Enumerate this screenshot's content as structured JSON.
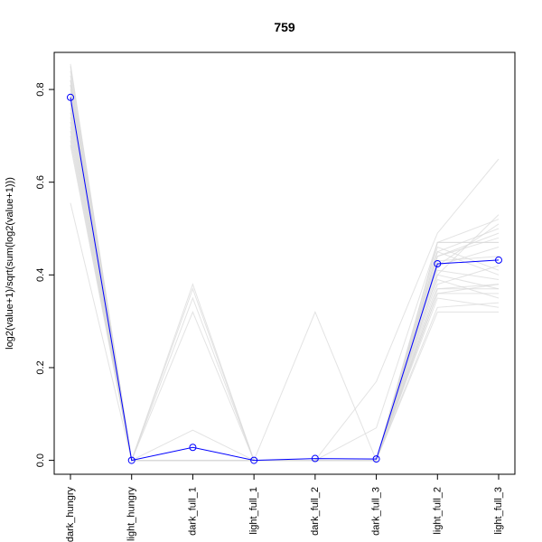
{
  "chart_data": {
    "type": "line",
    "title": "759",
    "xlabel": "",
    "ylabel": "log2(value+1)/sqrt(sum(log2(value+1)))",
    "ylim": [
      -0.03,
      0.88
    ],
    "yticks": [
      0.0,
      0.2,
      0.4,
      0.6,
      0.8
    ],
    "ytick_labels": [
      "0.0",
      "0.2",
      "0.4",
      "0.6",
      "0.8"
    ],
    "categories": [
      "dark_hungry",
      "light_hungry",
      "dark_full_1",
      "light_full_1",
      "dark_full_2",
      "dark_full_3",
      "light_full_2",
      "light_full_3"
    ],
    "grid": false,
    "legend": "none",
    "colors": {
      "highlight": "#0000ff",
      "background": "#d9d9d9"
    },
    "highlight_series": {
      "values": [
        0.783,
        0.0,
        0.028,
        0.0,
        0.004,
        0.003,
        0.424,
        0.432
      ]
    },
    "background_series": [
      {
        "values": [
          0.855,
          0.0,
          0.0,
          0.0,
          0.0,
          0.0,
          0.47,
          0.47
        ]
      },
      {
        "values": [
          0.85,
          0.0,
          0.0,
          0.0,
          0.0,
          0.0,
          0.46,
          0.41
        ]
      },
      {
        "values": [
          0.84,
          0.0,
          0.0,
          0.0,
          0.0,
          0.0,
          0.37,
          0.37
        ]
      },
      {
        "values": [
          0.83,
          0.0,
          0.38,
          0.0,
          0.0,
          0.0,
          0.45,
          0.5
        ]
      },
      {
        "values": [
          0.82,
          0.0,
          0.37,
          0.0,
          0.0,
          0.0,
          0.44,
          0.48
        ]
      },
      {
        "values": [
          0.81,
          0.0,
          0.35,
          0.0,
          0.0,
          0.0,
          0.4,
          0.53
        ]
      },
      {
        "values": [
          0.8,
          0.0,
          0.32,
          0.0,
          0.0,
          0.0,
          0.42,
          0.46
        ]
      },
      {
        "values": [
          0.79,
          0.0,
          0.0,
          0.0,
          0.32,
          0.0,
          0.36,
          0.38
        ]
      },
      {
        "values": [
          0.78,
          0.0,
          0.0,
          0.0,
          0.0,
          0.17,
          0.49,
          0.65
        ]
      },
      {
        "values": [
          0.77,
          0.0,
          0.065,
          0.0,
          0.0,
          0.07,
          0.47,
          0.52
        ]
      },
      {
        "values": [
          0.76,
          0.0,
          0.0,
          0.0,
          0.0,
          0.0,
          0.43,
          0.44
        ]
      },
      {
        "values": [
          0.75,
          0.0,
          0.0,
          0.0,
          0.0,
          0.0,
          0.39,
          0.35
        ]
      },
      {
        "values": [
          0.74,
          0.0,
          0.0,
          0.0,
          0.0,
          0.0,
          0.35,
          0.33
        ]
      },
      {
        "values": [
          0.73,
          0.0,
          0.0,
          0.0,
          0.0,
          0.0,
          0.33,
          0.34
        ]
      },
      {
        "values": [
          0.72,
          0.0,
          0.0,
          0.0,
          0.0,
          0.0,
          0.41,
          0.39
        ]
      },
      {
        "values": [
          0.71,
          0.0,
          0.0,
          0.0,
          0.0,
          0.0,
          0.38,
          0.42
        ]
      },
      {
        "values": [
          0.7,
          0.0,
          0.0,
          0.0,
          0.0,
          0.0,
          0.44,
          0.49
        ]
      },
      {
        "values": [
          0.69,
          0.0,
          0.0,
          0.0,
          0.0,
          0.0,
          0.36,
          0.36
        ]
      },
      {
        "values": [
          0.68,
          0.0,
          0.0,
          0.0,
          0.0,
          0.0,
          0.45,
          0.4
        ]
      },
      {
        "values": [
          0.555,
          0.0,
          0.0,
          0.0,
          0.0,
          0.0,
          0.32,
          0.32
        ]
      },
      {
        "values": [
          0.82,
          0.0,
          0.0,
          0.0,
          0.0,
          0.0,
          0.42,
          0.51
        ]
      },
      {
        "values": [
          0.81,
          0.0,
          0.0,
          0.0,
          0.0,
          0.0,
          0.4,
          0.37
        ]
      },
      {
        "values": [
          0.79,
          0.0,
          0.0,
          0.0,
          0.0,
          0.0,
          0.47,
          0.47
        ]
      },
      {
        "values": [
          0.77,
          0.0,
          0.0,
          0.0,
          0.0,
          0.0,
          0.37,
          0.38
        ]
      }
    ]
  }
}
